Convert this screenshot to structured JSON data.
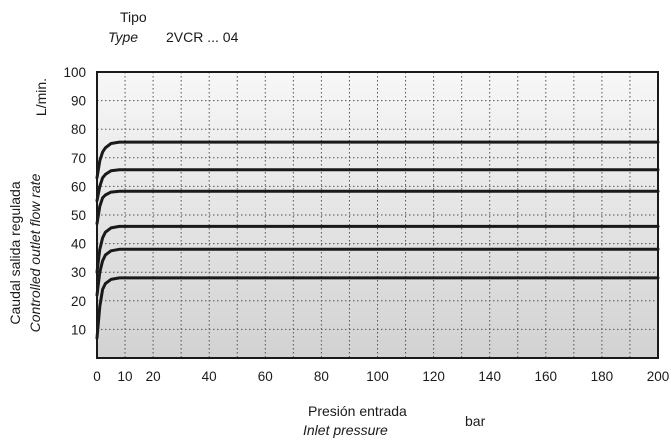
{
  "header": {
    "tipo_label": "Tipo",
    "type_label": "Type",
    "model": "2VCR ... 04"
  },
  "chart_data": {
    "type": "line",
    "y_unit": "L/min.",
    "ylabel": "Caudal salida regulada",
    "ylabel_en": "Controlled outlet flow rate",
    "xlabel": "Presión entrada",
    "xlabel_en": "Inlet pressure",
    "x_unit": "bar",
    "xlim": [
      0,
      200
    ],
    "ylim": [
      0,
      100
    ],
    "x_ticks": [
      0,
      10,
      20,
      40,
      60,
      80,
      100,
      120,
      140,
      160,
      180,
      200
    ],
    "y_ticks": [
      10,
      20,
      30,
      40,
      50,
      60,
      70,
      80,
      90,
      100
    ],
    "grid": true,
    "series": [
      {
        "x": [
          0,
          1,
          2,
          3,
          5,
          8,
          200
        ],
        "values": [
          7,
          18,
          24,
          26,
          27.5,
          28,
          28
        ]
      },
      {
        "x": [
          0,
          1,
          2,
          3,
          5,
          8,
          200
        ],
        "values": [
          22,
          30,
          34,
          36,
          37.5,
          38,
          38
        ]
      },
      {
        "x": [
          0,
          1,
          2,
          3,
          5,
          8,
          200
        ],
        "values": [
          30,
          38,
          42,
          44,
          45.5,
          46,
          46
        ]
      },
      {
        "x": [
          0,
          1,
          2,
          3,
          5,
          8,
          200
        ],
        "values": [
          47,
          53,
          56,
          57,
          58,
          58.3,
          58.3
        ]
      },
      {
        "x": [
          0,
          1,
          2,
          3,
          5,
          8,
          200
        ],
        "values": [
          55,
          60,
          63,
          64.2,
          65.5,
          65.8,
          65.8
        ]
      },
      {
        "x": [
          0,
          1,
          2,
          3,
          5,
          8,
          200
        ],
        "values": [
          63,
          69,
          72,
          73.5,
          75,
          75.5,
          75.5
        ]
      }
    ]
  }
}
